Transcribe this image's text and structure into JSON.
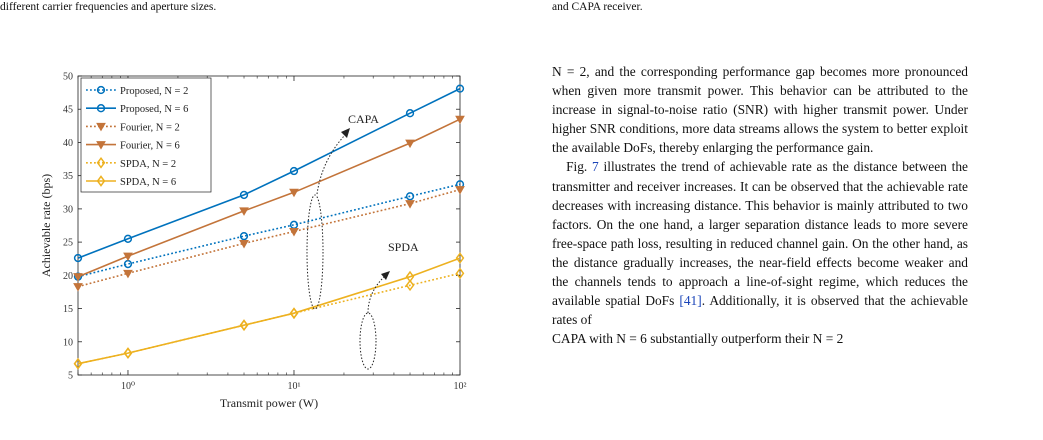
{
  "captions": {
    "left": "different carrier frequencies and aperture sizes.",
    "right": "and CAPA receiver."
  },
  "body": {
    "p1": "N = 2, and the corresponding performance gap becomes more pronounced when given more transmit power. This behavior can be attributed to the increase in signal-to-noise ratio (SNR) with higher transmit power. Under higher SNR conditions, more data streams allows the system to better exploit the available DoFs, thereby enlarging the performance gain.",
    "p2_a": "Fig. ",
    "p2_ref": "7",
    "p2_b": " illustrates the trend of achievable rate as the distance between the transmitter and receiver increases. It can be observed that the achievable rate decreases with increasing distance. This behavior is mainly attributed to two factors. On the one hand, a larger separation distance leads to more severe free-space path loss, resulting in reduced channel gain. On the other hand, as the distance gradually increases, the near-field effects become weaker and the channels tends to approach a line-of-sight regime, which reduces the available spatial DoFs ",
    "p2_cite": "[41]",
    "p2_c": ". Additionally, it is observed that the achievable rates of",
    "p2_d": "CAPA with N = 6 substantially outperform their N = 2"
  },
  "chart_data": {
    "type": "line",
    "xlabel": "Transmit power (W)",
    "ylabel": "Achievable rate (bps)",
    "xscale": "log",
    "xlim": [
      0.5,
      100
    ],
    "ylim": [
      5,
      50
    ],
    "xticks": [
      1,
      10,
      100
    ],
    "xticklabels": [
      "10⁰",
      "10¹",
      "10²"
    ],
    "yticks": [
      5,
      10,
      15,
      20,
      25,
      30,
      35,
      40,
      45,
      50
    ],
    "grid": false,
    "legend_position": "top-left",
    "annotations": [
      "CAPA",
      "SPDA"
    ],
    "x": [
      0.5,
      1,
      5,
      10,
      50,
      100
    ],
    "series": [
      {
        "name": "Proposed, N = 2",
        "color": "#0072bd",
        "dash": true,
        "marker": "circle",
        "values": [
          19.8,
          21.7,
          25.9,
          27.6,
          31.9,
          33.7
        ]
      },
      {
        "name": "Proposed, N = 6",
        "color": "#0072bd",
        "dash": false,
        "marker": "circle",
        "values": [
          22.6,
          25.5,
          32.1,
          35.7,
          44.4,
          48.1
        ]
      },
      {
        "name": "Fourier, N = 2",
        "color": "#c3743a",
        "dash": true,
        "marker": "triangle",
        "values": [
          18.3,
          20.3,
          24.8,
          26.6,
          30.8,
          32.9
        ]
      },
      {
        "name": "Fourier, N = 6",
        "color": "#c3743a",
        "dash": false,
        "marker": "triangle",
        "values": [
          19.8,
          22.9,
          29.7,
          32.5,
          39.9,
          43.5
        ]
      },
      {
        "name": "SPDA, N = 2",
        "color": "#edb120",
        "dash": true,
        "marker": "diamond",
        "values": [
          6.7,
          8.3,
          12.5,
          14.3,
          18.5,
          20.3
        ]
      },
      {
        "name": "SPDA, N = 6",
        "color": "#edb120",
        "dash": false,
        "marker": "diamond",
        "values": [
          6.7,
          8.3,
          12.5,
          14.3,
          19.8,
          22.6
        ]
      }
    ]
  }
}
